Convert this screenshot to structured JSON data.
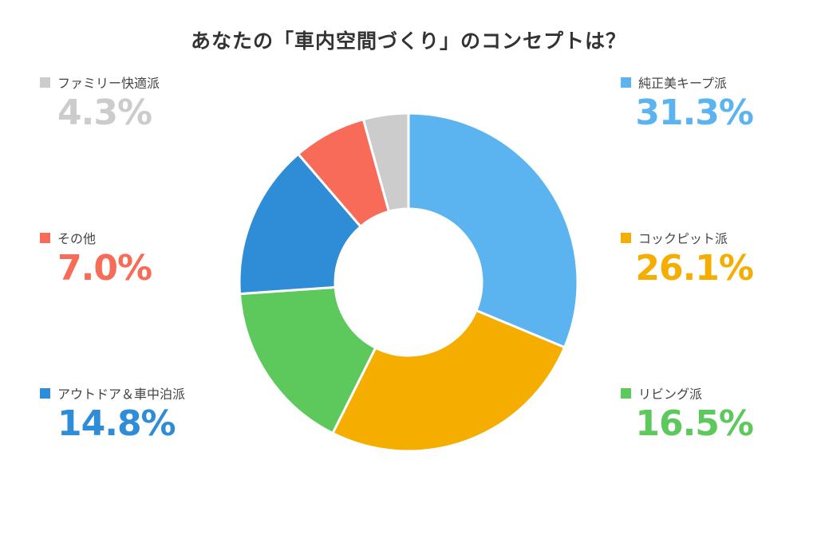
{
  "chart_data": {
    "type": "pie",
    "variant": "donut",
    "title": "あなたの「車内空間づくり」のコンセプトは？",
    "slices": [
      {
        "label": "純正美キープ派",
        "value": 31.3,
        "value_label": "31.3%",
        "color": "#5bb4f0",
        "side": "right"
      },
      {
        "label": "コックピット派",
        "value": 26.1,
        "value_label": "26.1%",
        "color": "#f5ad00",
        "side": "right"
      },
      {
        "label": "リビング派",
        "value": 16.5,
        "value_label": "16.5%",
        "color": "#5dc95d",
        "side": "right"
      },
      {
        "label": "アウトドア＆車中泊派",
        "value": 14.8,
        "value_label": "14.8%",
        "color": "#2f8cd6",
        "side": "left"
      },
      {
        "label": "その他",
        "value": 7.0,
        "value_label": "7.0%",
        "color": "#f86b58",
        "side": "left"
      },
      {
        "label": "ファミリー快適派",
        "value": 4.3,
        "value_label": "4.3%",
        "color": "#cccccc",
        "side": "left"
      }
    ],
    "start": "top",
    "direction": "clockwise"
  }
}
